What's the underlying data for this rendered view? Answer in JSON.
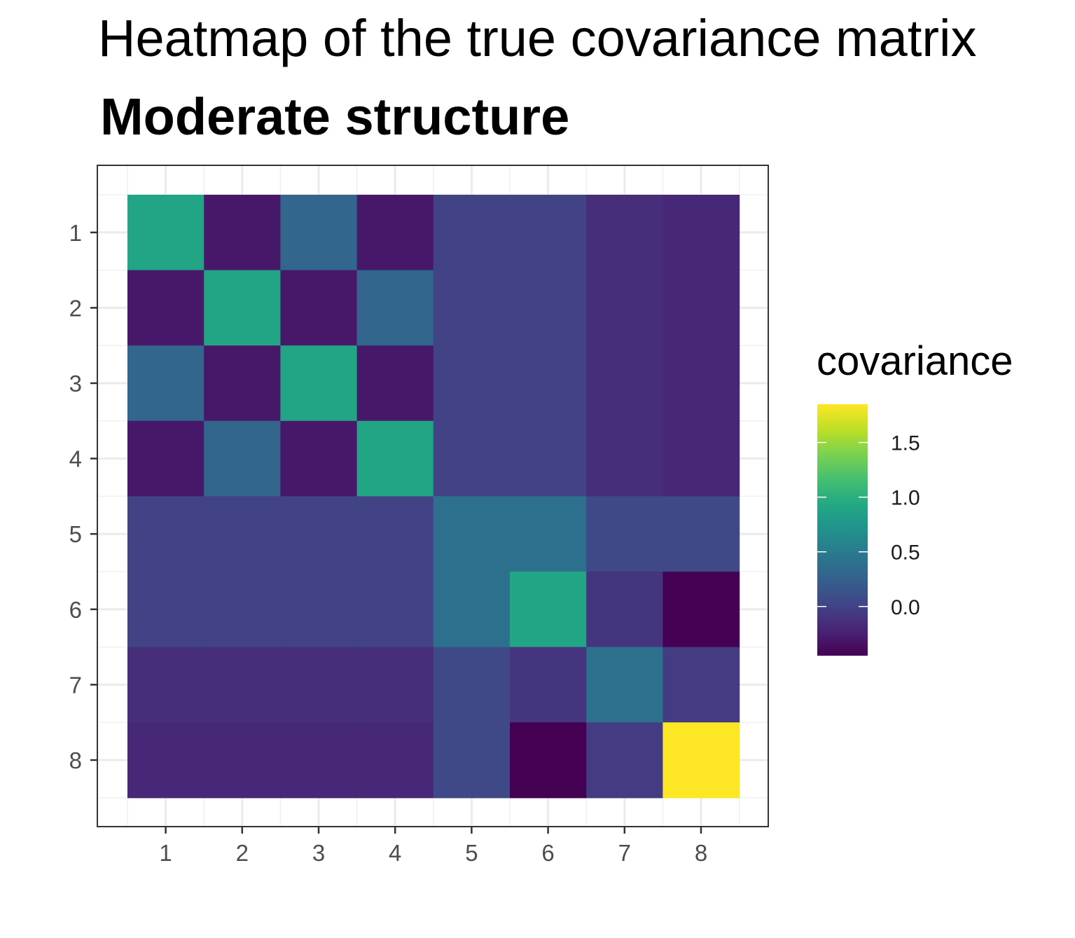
{
  "chart_data": {
    "type": "heatmap",
    "title": "Heatmap of the true covariance matrix",
    "subtitle": "Moderate structure",
    "xlabel": "",
    "ylabel": "",
    "x_categories": [
      "1",
      "2",
      "3",
      "4",
      "5",
      "6",
      "7",
      "8"
    ],
    "y_categories": [
      "1",
      "2",
      "3",
      "4",
      "5",
      "6",
      "7",
      "8"
    ],
    "values": [
      [
        0.9,
        -0.3,
        0.3,
        -0.3,
        0.0,
        0.0,
        -0.15,
        -0.2
      ],
      [
        -0.3,
        0.9,
        -0.3,
        0.3,
        0.0,
        0.0,
        -0.15,
        -0.2
      ],
      [
        0.3,
        -0.3,
        0.9,
        -0.3,
        0.0,
        0.0,
        -0.15,
        -0.2
      ],
      [
        -0.3,
        0.3,
        -0.3,
        0.9,
        0.0,
        0.0,
        -0.15,
        -0.2
      ],
      [
        0.0,
        0.0,
        0.0,
        0.0,
        0.4,
        0.4,
        0.05,
        0.05
      ],
      [
        0.0,
        0.0,
        0.0,
        0.0,
        0.4,
        0.9,
        -0.1,
        -0.45
      ],
      [
        -0.15,
        -0.15,
        -0.15,
        -0.15,
        0.05,
        -0.1,
        0.4,
        -0.05
      ],
      [
        -0.2,
        -0.2,
        -0.2,
        -0.2,
        0.05,
        -0.45,
        -0.05,
        1.85
      ]
    ],
    "legend": {
      "title": "covariance",
      "ticks": [
        "1.5",
        "1.0",
        "0.5",
        "0.0"
      ],
      "tick_values": [
        1.5,
        1.0,
        0.5,
        0.0
      ],
      "range": [
        -0.45,
        1.85
      ],
      "colormap": "viridis",
      "placement": "right"
    },
    "grid": true,
    "theme": "bw"
  }
}
